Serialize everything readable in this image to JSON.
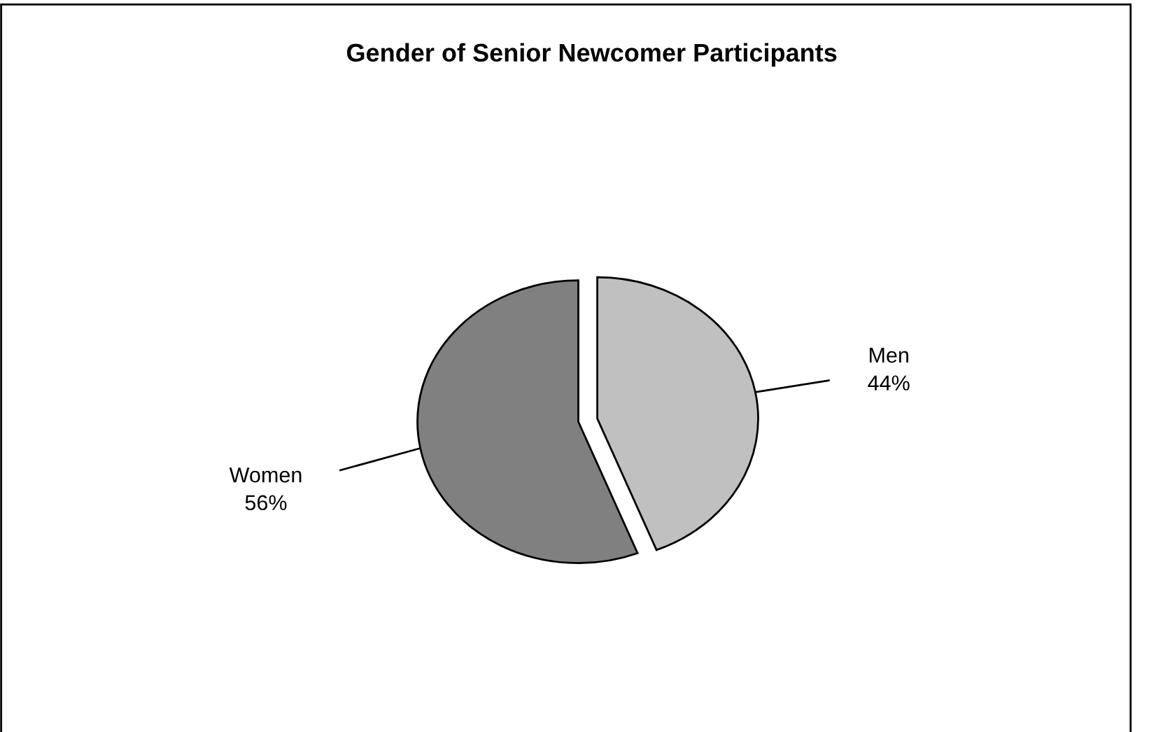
{
  "chart_data": {
    "type": "pie",
    "title": "Gender of Senior Newcomer Participants",
    "categories": [
      "Men",
      "Women"
    ],
    "values": [
      44,
      56
    ],
    "colors": [
      "#c0c0c0",
      "#808080"
    ],
    "value_labels": [
      "44%",
      "56%"
    ]
  }
}
